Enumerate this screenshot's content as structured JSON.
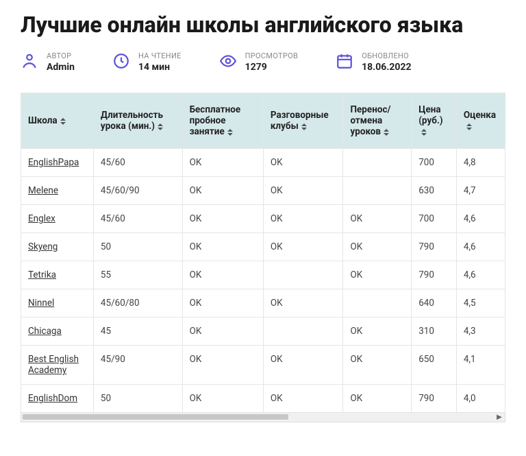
{
  "title": "Лучшие онлайн школы английского языка",
  "meta": {
    "author": {
      "label": "АВТОР",
      "value": "Admin"
    },
    "readtime": {
      "label": "НА ЧТЕНИЕ",
      "value": "14 мин"
    },
    "views": {
      "label": "ПРОСМОТРОВ",
      "value": "1279"
    },
    "updated": {
      "label": "ОБНОВЛЕНО",
      "value": "18.06.2022"
    }
  },
  "table": {
    "header_bg": "#d6e9ea",
    "border_color": "#e5e5e5",
    "columns": [
      "Школа",
      "Длительность урока (мин.)",
      "Бесплатное пробное занятие",
      "Разговорные клубы",
      "Перенос/отмена уроков",
      "Цена (руб.)",
      "Оценка"
    ],
    "rows": [
      {
        "school": "EnglishPapa",
        "duration": "45/60",
        "trial": "OK",
        "clubs": "OK",
        "reschedule": "",
        "price": "700",
        "rating": "4,8"
      },
      {
        "school": "Melene",
        "duration": "45/60/90",
        "trial": "OK",
        "clubs": "OK",
        "reschedule": "",
        "price": "630",
        "rating": "4,7"
      },
      {
        "school": "Englex",
        "duration": "45/60",
        "trial": "OK",
        "clubs": "OK",
        "reschedule": "OK",
        "price": "700",
        "rating": "4,6"
      },
      {
        "school": "Skyeng",
        "duration": "50",
        "trial": "OK",
        "clubs": "OK",
        "reschedule": "OK",
        "price": "790",
        "rating": "4,6"
      },
      {
        "school": "Tetrika",
        "duration": "55",
        "trial": "OK",
        "clubs": "",
        "reschedule": "OK",
        "price": "790",
        "rating": "4,6"
      },
      {
        "school": "Ninnel",
        "duration": "45/60/80",
        "trial": "OK",
        "clubs": "OK",
        "reschedule": "",
        "price": "640",
        "rating": "4,5"
      },
      {
        "school": "Chicaga",
        "duration": "45",
        "trial": "OK",
        "clubs": "",
        "reschedule": "OK",
        "price": "310",
        "rating": "4,3"
      },
      {
        "school": "Best English Academy",
        "duration": "45/90",
        "trial": "OK",
        "clubs": "OK",
        "reschedule": "OK",
        "price": "650",
        "rating": "4,1"
      },
      {
        "school": "EnglishDom",
        "duration": "50",
        "trial": "OK",
        "clubs": "OK",
        "reschedule": "OK",
        "price": "790",
        "rating": "4,0"
      }
    ]
  }
}
